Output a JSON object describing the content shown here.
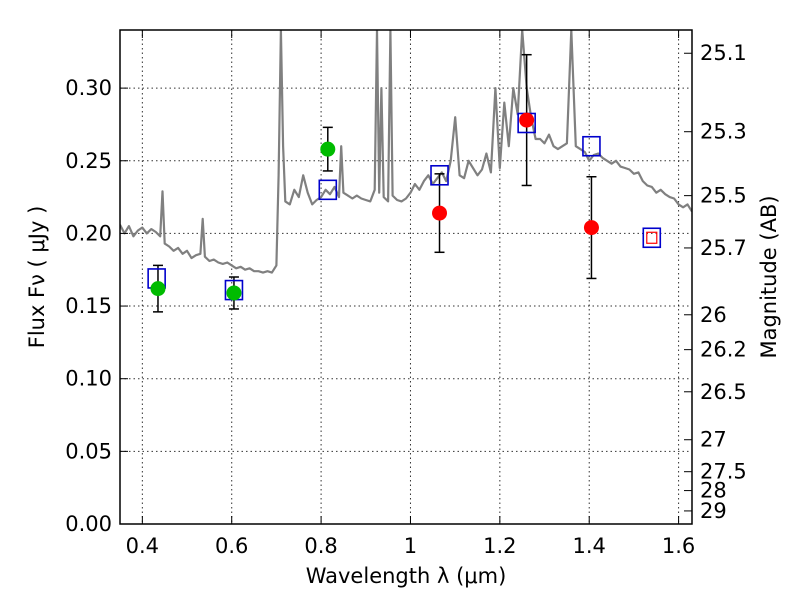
{
  "chart_data": {
    "type": "scatter",
    "title": "",
    "xlabel": "Wavelength  λ (μm)",
    "ylabel": "Flux  Fν  ( μJy )",
    "ylabel_right": "Magnitude (AB)",
    "xlim": [
      0.35,
      1.63
    ],
    "ylim": [
      0.0,
      0.34
    ],
    "grid": true,
    "x_ticks": [
      0.4,
      0.6,
      0.8,
      1.0,
      1.2,
      1.4,
      1.6
    ],
    "x_tick_labels": [
      "0.4",
      "0.6",
      "0.8",
      "1",
      "1.2",
      "1.4",
      "1.6"
    ],
    "y_ticks": [
      0.0,
      0.05,
      0.1,
      0.15,
      0.2,
      0.25,
      0.3
    ],
    "y_tick_labels": [
      "0.00",
      "0.05",
      "0.10",
      "0.15",
      "0.20",
      "0.25",
      "0.30"
    ],
    "right_ticks": [
      {
        "label": "25.1",
        "flux": 0.324
      },
      {
        "label": "25.3",
        "flux": 0.27
      },
      {
        "label": "25.5",
        "flux": 0.226
      },
      {
        "label": "25.7",
        "flux": 0.19
      },
      {
        "label": "26",
        "flux": 0.144
      },
      {
        "label": "26.2",
        "flux": 0.12
      },
      {
        "label": "26.5",
        "flux": 0.091
      },
      {
        "label": "27",
        "flux": 0.058
      },
      {
        "label": "27.5",
        "flux": 0.036
      },
      {
        "label": "28",
        "flux": 0.023
      },
      {
        "label": "29",
        "flux": 0.009
      }
    ],
    "series": [
      {
        "name": "",
        "kind": "line",
        "color": "#808080",
        "x": [
          0.35,
          0.36,
          0.37,
          0.38,
          0.39,
          0.4,
          0.41,
          0.42,
          0.43,
          0.44,
          0.445,
          0.45,
          0.46,
          0.47,
          0.48,
          0.49,
          0.5,
          0.51,
          0.52,
          0.53,
          0.535,
          0.54,
          0.55,
          0.56,
          0.57,
          0.58,
          0.59,
          0.6,
          0.61,
          0.62,
          0.63,
          0.64,
          0.65,
          0.66,
          0.67,
          0.68,
          0.69,
          0.7,
          0.705,
          0.71,
          0.715,
          0.72,
          0.73,
          0.74,
          0.75,
          0.76,
          0.77,
          0.78,
          0.79,
          0.8,
          0.81,
          0.82,
          0.83,
          0.84,
          0.845,
          0.85,
          0.86,
          0.87,
          0.88,
          0.89,
          0.9,
          0.91,
          0.92,
          0.925,
          0.93,
          0.935,
          0.94,
          0.95,
          0.955,
          0.96,
          0.97,
          0.98,
          0.99,
          1.0,
          1.01,
          1.02,
          1.03,
          1.04,
          1.05,
          1.06,
          1.07,
          1.08,
          1.09,
          1.1,
          1.11,
          1.12,
          1.13,
          1.14,
          1.15,
          1.16,
          1.17,
          1.18,
          1.19,
          1.2,
          1.21,
          1.22,
          1.23,
          1.24,
          1.25,
          1.26,
          1.27,
          1.28,
          1.29,
          1.3,
          1.31,
          1.32,
          1.33,
          1.34,
          1.35,
          1.36,
          1.37,
          1.38,
          1.39,
          1.4,
          1.41,
          1.42,
          1.43,
          1.44,
          1.45,
          1.46,
          1.47,
          1.48,
          1.49,
          1.5,
          1.51,
          1.52,
          1.53,
          1.54,
          1.55,
          1.56,
          1.57,
          1.58,
          1.59,
          1.6,
          1.61,
          1.62,
          1.63
        ],
        "y": [
          0.206,
          0.2,
          0.205,
          0.198,
          0.202,
          0.204,
          0.2,
          0.203,
          0.201,
          0.198,
          0.229,
          0.193,
          0.191,
          0.188,
          0.19,
          0.186,
          0.188,
          0.183,
          0.185,
          0.186,
          0.21,
          0.184,
          0.181,
          0.182,
          0.18,
          0.179,
          0.18,
          0.178,
          0.176,
          0.177,
          0.175,
          0.176,
          0.174,
          0.174,
          0.173,
          0.174,
          0.173,
          0.178,
          0.24,
          0.34,
          0.26,
          0.222,
          0.22,
          0.23,
          0.225,
          0.24,
          0.228,
          0.22,
          0.223,
          0.225,
          0.23,
          0.227,
          0.232,
          0.225,
          0.26,
          0.228,
          0.226,
          0.224,
          0.226,
          0.224,
          0.223,
          0.222,
          0.23,
          0.34,
          0.228,
          0.3,
          0.225,
          0.222,
          0.34,
          0.226,
          0.223,
          0.222,
          0.224,
          0.228,
          0.234,
          0.23,
          0.236,
          0.24,
          0.234,
          0.238,
          0.242,
          0.236,
          0.25,
          0.28,
          0.24,
          0.238,
          0.25,
          0.245,
          0.24,
          0.244,
          0.255,
          0.242,
          0.3,
          0.245,
          0.29,
          0.26,
          0.3,
          0.282,
          0.34,
          0.3,
          0.28,
          0.265,
          0.265,
          0.262,
          0.268,
          0.26,
          0.258,
          0.26,
          0.262,
          0.34,
          0.26,
          0.258,
          0.256,
          0.25,
          0.254,
          0.255,
          0.252,
          0.25,
          0.248,
          0.25,
          0.246,
          0.245,
          0.244,
          0.241,
          0.242,
          0.236,
          0.233,
          0.232,
          0.228,
          0.23,
          0.227,
          0.225,
          0.224,
          0.22,
          0.218,
          0.22,
          0.215
        ]
      },
      {
        "name": "",
        "kind": "hollow-square",
        "color": "#0000cc",
        "x": [
          0.432,
          0.605,
          0.815,
          1.065,
          1.26,
          1.405,
          1.54
        ],
        "y": [
          0.169,
          0.161,
          0.23,
          0.24,
          0.276,
          0.26,
          0.197
        ]
      },
      {
        "name": "",
        "kind": "circle",
        "color": "#00bb00",
        "x": [
          0.435,
          0.605,
          0.815
        ],
        "y": [
          0.162,
          0.159,
          0.258
        ],
        "yerr": [
          0.016,
          0.011,
          0.015
        ]
      },
      {
        "name": "",
        "kind": "circle",
        "color": "#ff0000",
        "x": [
          1.065,
          1.26,
          1.405
        ],
        "y": [
          0.214,
          0.278,
          0.204
        ],
        "yerr": [
          0.027,
          0.045,
          0.035
        ]
      },
      {
        "name": "",
        "kind": "hollow-square-small",
        "color": "#ff0000",
        "x": [
          1.54
        ],
        "y": [
          0.197
        ]
      }
    ]
  }
}
